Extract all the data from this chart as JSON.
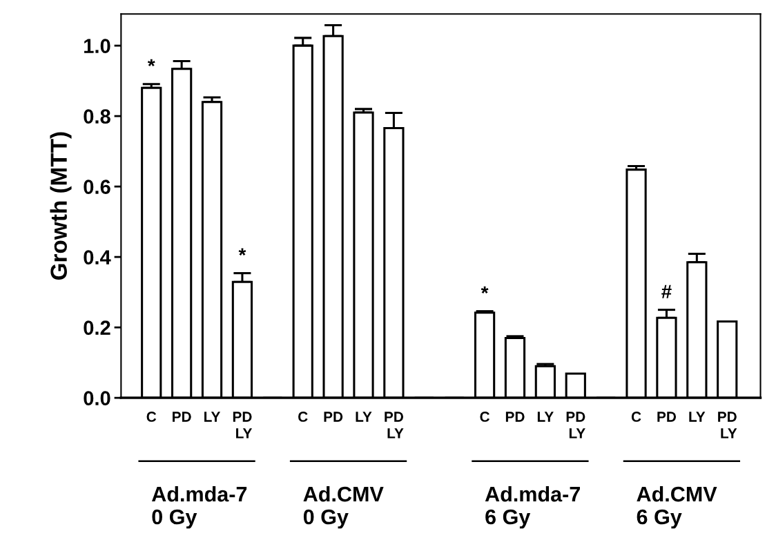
{
  "chart_data": {
    "type": "bar",
    "ylabel": "Growth (MTT)",
    "categories": [
      "C",
      "PD",
      "LY",
      "PD\nLY",
      null,
      "C",
      "PD",
      "LY",
      "PD\nLY",
      null,
      null,
      "C",
      "PD",
      "LY",
      "PD\nLY",
      null,
      "C",
      "PD",
      "LY",
      "PD\nLY"
    ],
    "values": [
      0.88,
      0.934,
      0.84,
      0.329,
      0,
      1.0,
      1.027,
      0.81,
      0.766,
      0,
      0,
      0.242,
      0.17,
      0.09,
      0.069,
      0,
      0.648,
      0.227,
      0.385,
      0.217
    ],
    "errors": [
      [
        0.88,
        0.891
      ],
      [
        0.934,
        0.956
      ],
      [
        0.84,
        0.853
      ],
      [
        0.329,
        0.354
      ],
      null,
      [
        1.0,
        1.022
      ],
      [
        1.027,
        1.058
      ],
      [
        0.81,
        0.82
      ],
      [
        0.766,
        0.809
      ],
      null,
      null,
      [
        0.242,
        0.246
      ],
      [
        0.17,
        0.175
      ],
      [
        0.09,
        0.096
      ],
      null,
      null,
      [
        0.648,
        0.658
      ],
      [
        0.227,
        0.25
      ],
      [
        0.385,
        0.409
      ],
      null
    ],
    "value_labels": [
      "*",
      null,
      null,
      "*",
      null,
      null,
      null,
      null,
      null,
      null,
      null,
      "*",
      null,
      null,
      null,
      null,
      null,
      "#",
      null,
      null
    ],
    "colors": [
      "#ffffff",
      "#ffffff",
      "#ffffff",
      "#ffffff",
      "#000000",
      "#ffffff",
      "#ffffff",
      "#ffffff",
      "#ffffff",
      "#000000",
      "#000000",
      "#ffffff",
      "#ffffff",
      "#ffffff",
      "#ffffff",
      "#000000",
      "#ffffff",
      "#ffffff",
      "#ffffff",
      "#ffffff"
    ],
    "annotations": [
      "Ad.mda-7\n0 Gy",
      "Ad.CMV\n0 Gy",
      "Ad.mda-7\n6 Gy",
      "Ad.CMV\n6 Gy"
    ],
    "ylim": [
      0,
      1.09
    ],
    "yticks": [
      {
        "value": 0,
        "label": "0.0"
      },
      {
        "value": 0.2,
        "label": "0.2"
      },
      {
        "value": 0.4,
        "label": "0.4"
      },
      {
        "value": 0.6,
        "label": "0.6"
      },
      {
        "value": 0.8,
        "label": "0.8"
      },
      {
        "value": 1.0,
        "label": "1.0"
      }
    ],
    "grid": false,
    "legend": false
  }
}
